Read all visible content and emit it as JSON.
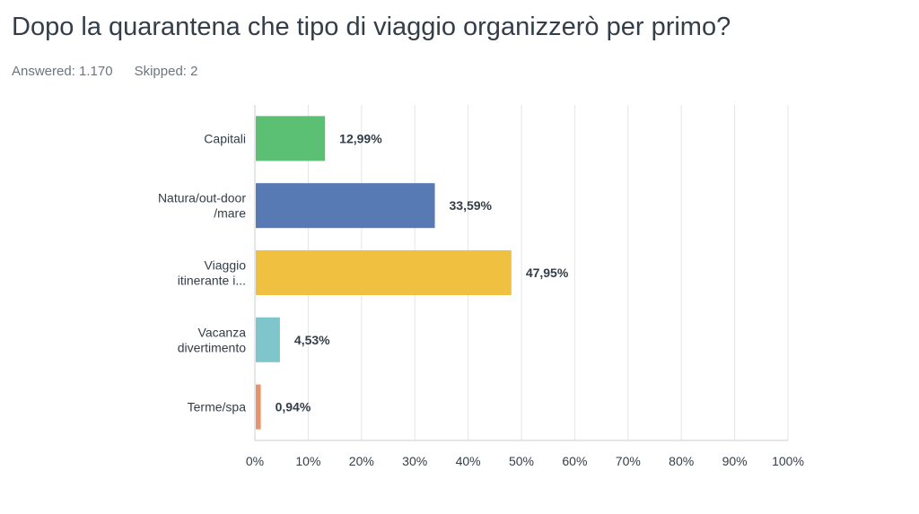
{
  "header": {
    "title": "Dopo la quarantena che tipo di viaggio organizzerò per primo?",
    "answered": "Answered: 1.170",
    "skipped": "Skipped: 2"
  },
  "chart_data": {
    "type": "bar",
    "orientation": "horizontal",
    "title": "Dopo la quarantena che tipo di viaggio organizzerò per primo?",
    "xlabel": "",
    "ylabel": "",
    "xlim": [
      0,
      100
    ],
    "grid": true,
    "categories": [
      [
        "Capitali"
      ],
      [
        "Natura/out-door",
        "/mare"
      ],
      [
        "Viaggio",
        "itinerante i..."
      ],
      [
        "Vacanza",
        "divertimento"
      ],
      [
        "Terme/spa"
      ]
    ],
    "values": [
      12.99,
      33.59,
      47.95,
      4.53,
      0.94
    ],
    "value_labels": [
      "12,99%",
      "33,59%",
      "47,95%",
      "4,53%",
      "0,94%"
    ],
    "colors": [
      "#5bbf74",
      "#577ab5",
      "#f0c040",
      "#7ec6cc",
      "#e8936a"
    ],
    "ticks": [
      0,
      10,
      20,
      30,
      40,
      50,
      60,
      70,
      80,
      90,
      100
    ],
    "tick_labels": [
      "0%",
      "10%",
      "20%",
      "30%",
      "40%",
      "50%",
      "60%",
      "70%",
      "80%",
      "90%",
      "100%"
    ]
  }
}
